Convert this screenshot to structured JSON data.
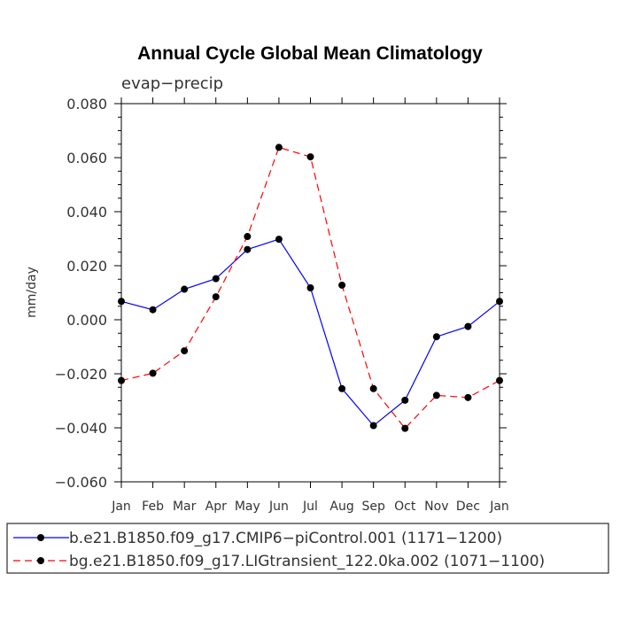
{
  "chart_data": {
    "type": "line",
    "title": "Annual Cycle Global Mean Climatology",
    "subtitle": "evap−precip",
    "xlabel": "",
    "ylabel": "mm/day",
    "categories": [
      "Jan",
      "Feb",
      "Mar",
      "Apr",
      "May",
      "Jun",
      "Jul",
      "Aug",
      "Sep",
      "Oct",
      "Nov",
      "Dec",
      "Jan"
    ],
    "ylim": [
      -0.06,
      0.08
    ],
    "yticks": [
      0.08,
      0.06,
      0.04,
      0.02,
      0.0,
      -0.02,
      -0.04,
      -0.06
    ],
    "ytick_labels": [
      "0.080",
      "0.060",
      "0.040",
      "0.020",
      "0.000",
      "−0.020",
      "−0.040",
      "−0.060"
    ],
    "grid": false,
    "legend_position": "bottom",
    "series": [
      {
        "name": "b.e21.B1850.f09_g17.CMIP6−piControl.001 (1171−1200)",
        "color": "#0000ff",
        "dash": "solid",
        "values": [
          0.0068,
          0.0037,
          0.0113,
          0.0152,
          0.026,
          0.0298,
          0.0118,
          -0.0255,
          -0.0392,
          -0.0298,
          -0.0063,
          -0.0025,
          0.0068
        ]
      },
      {
        "name": "bg.e21.B1850.f09_g17.LIGtransient_122.0ka.002 (1071−1100)",
        "color": "#ff0000",
        "dash": "dashed",
        "values": [
          -0.0225,
          -0.0198,
          -0.0115,
          0.0085,
          0.0308,
          0.0638,
          0.0603,
          0.0128,
          -0.0255,
          -0.0402,
          -0.028,
          -0.0288,
          -0.0225
        ]
      }
    ]
  }
}
